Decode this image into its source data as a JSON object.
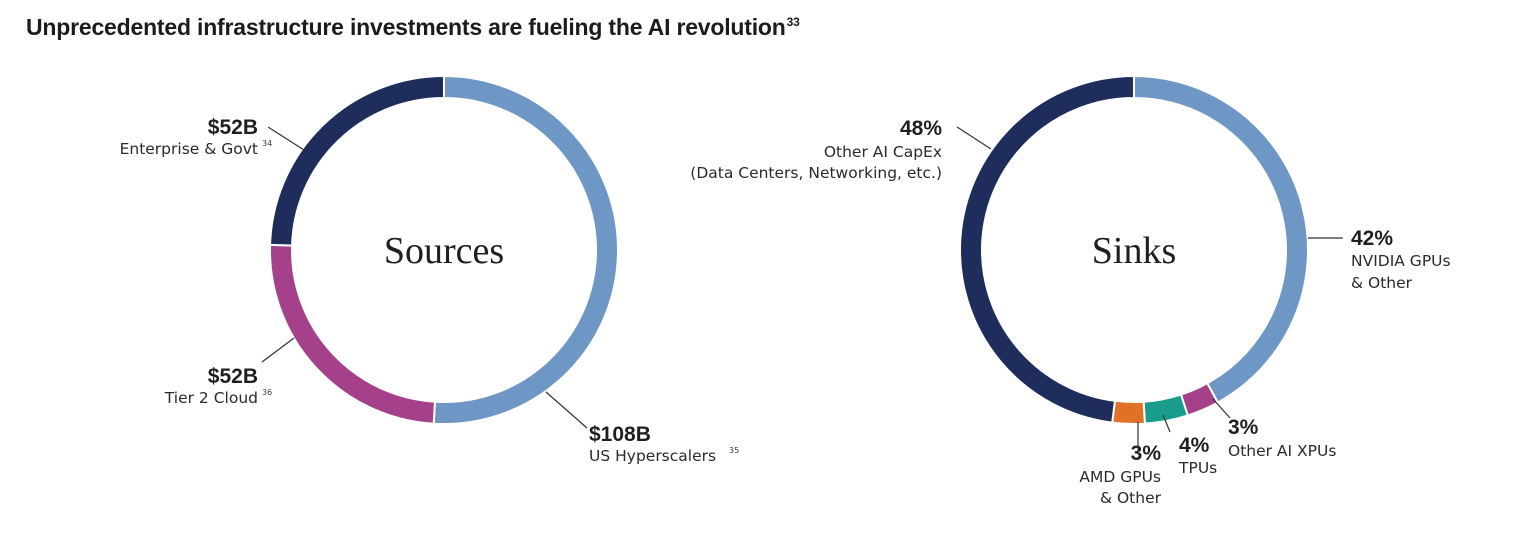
{
  "title": {
    "text": "Unprecedented infrastructure investments are fueling the AI revolution",
    "footnote": "33"
  },
  "chart_data": [
    {
      "type": "pie",
      "variant": "donut",
      "center_label": "Sources",
      "slices": [
        {
          "key": "hyper",
          "value": 108,
          "label": "$108B",
          "category": "US Hyperscalers",
          "footnote": "35",
          "color": "#6f97c6"
        },
        {
          "key": "tier2",
          "value": 52,
          "label": "$52B",
          "category": "Tier 2 Cloud",
          "footnote": "36",
          "color": "#a5418b"
        },
        {
          "key": "ent",
          "value": 52,
          "label": "$52B",
          "category": "Enterprise & Govt",
          "footnote": "34",
          "color": "#1f2d5c"
        }
      ]
    },
    {
      "type": "pie",
      "variant": "donut",
      "center_label": "Sinks",
      "slices": [
        {
          "key": "nvidia",
          "value": 42,
          "label": "42%",
          "category_lines": [
            "NVIDIA GPUs",
            "& Other"
          ],
          "color": "#6f97c6"
        },
        {
          "key": "xpu",
          "value": 3,
          "label": "3%",
          "category_lines": [
            "Other AI XPUs"
          ],
          "color": "#a5418b"
        },
        {
          "key": "tpu",
          "value": 4,
          "label": "4%",
          "category_lines": [
            "TPUs"
          ],
          "color": "#1a9c8c"
        },
        {
          "key": "amd",
          "value": 3,
          "label": "3%",
          "category_lines": [
            "AMD GPUs",
            "& Other"
          ],
          "color": "#e07127"
        },
        {
          "key": "capex",
          "value": 48,
          "label": "48%",
          "category_lines": [
            "Other AI CapEx",
            "(Data Centers, Networking, etc.)"
          ],
          "color": "#1f2d5c"
        }
      ]
    }
  ]
}
